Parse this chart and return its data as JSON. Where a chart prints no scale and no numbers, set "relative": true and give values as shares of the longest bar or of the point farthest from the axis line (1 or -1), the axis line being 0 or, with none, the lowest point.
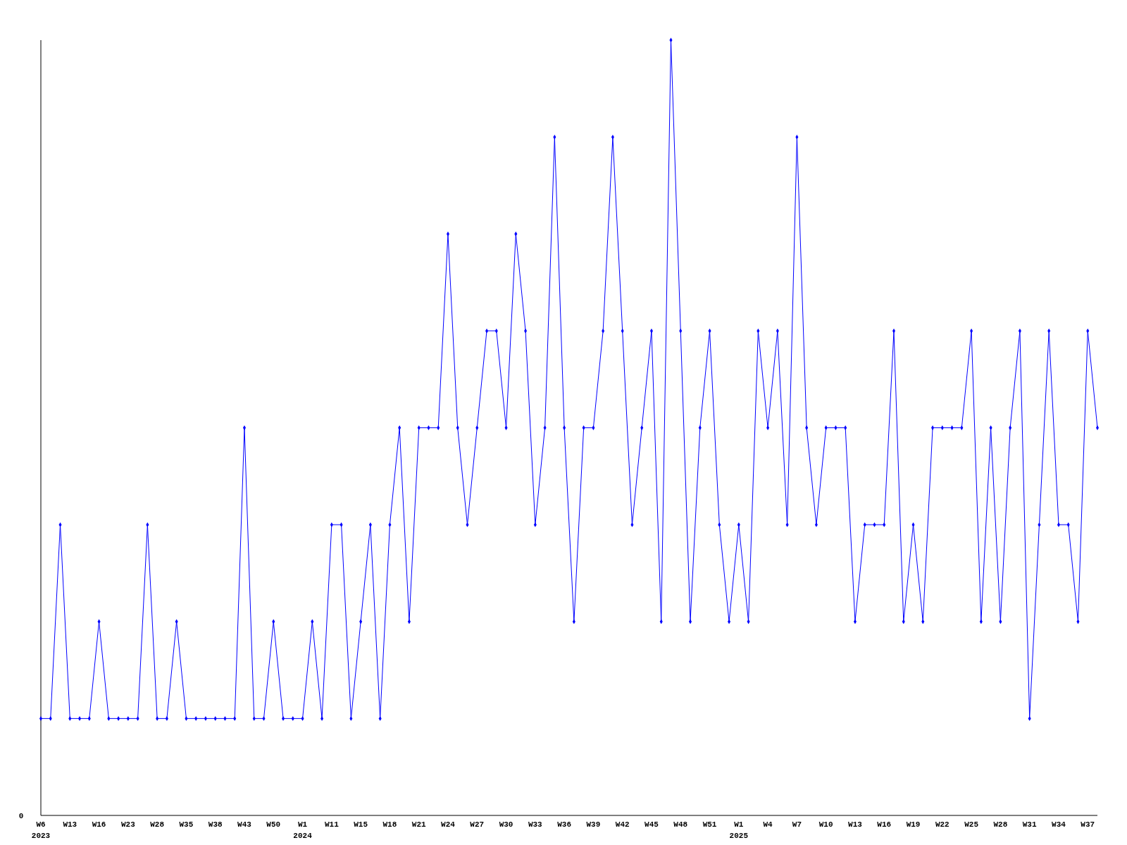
{
  "chart_data": {
    "type": "line",
    "relative": true,
    "marker": "diamond",
    "line_style": "solid",
    "annotations": [
      "0"
    ],
    "categories": [
      "W6\n2023",
      null,
      null,
      "W13",
      null,
      null,
      "W16",
      null,
      null,
      "W23",
      null,
      null,
      "W28",
      null,
      null,
      "W35",
      null,
      null,
      "W38",
      null,
      null,
      "W43",
      null,
      null,
      "W50",
      null,
      null,
      "W1\n2024",
      null,
      null,
      "W11",
      null,
      null,
      "W15",
      null,
      null,
      "W18",
      null,
      null,
      "W21",
      null,
      null,
      "W24",
      null,
      null,
      "W27",
      null,
      null,
      "W30",
      null,
      null,
      "W33",
      null,
      null,
      "W36",
      null,
      null,
      "W39",
      null,
      null,
      "W42",
      null,
      null,
      "W45",
      null,
      null,
      "W48",
      null,
      null,
      "W51",
      null,
      null,
      "W1\n2025",
      null,
      null,
      "W4",
      null,
      null,
      "W7",
      null,
      null,
      "W10",
      null,
      null,
      "W13",
      null,
      null,
      "W16",
      null,
      null,
      "W19",
      null,
      null,
      "W22",
      null,
      null,
      "W25",
      null,
      null,
      "W28",
      null,
      null,
      "W31",
      null,
      null,
      "W34",
      null,
      null,
      "W37",
      null
    ],
    "series": [
      {
        "color": "#0000ff",
        "values": [
          0.125,
          0.125,
          0.375,
          0.125,
          0.125,
          0.125,
          0.25,
          0.125,
          0.125,
          0.125,
          0.125,
          0.375,
          0.125,
          0.125,
          0.25,
          0.125,
          0.125,
          0.125,
          0.125,
          0.125,
          0.125,
          0.5,
          0.125,
          0.125,
          0.25,
          0.125,
          0.125,
          0.125,
          0.25,
          0.125,
          0.375,
          0.375,
          0.125,
          0.25,
          0.375,
          0.125,
          0.375,
          0.5,
          0.25,
          0.5,
          0.5,
          0.5,
          0.75,
          0.5,
          0.375,
          0.5,
          0.625,
          0.625,
          0.5,
          0.75,
          0.625,
          0.375,
          0.5,
          0.875,
          0.5,
          0.25,
          0.5,
          0.5,
          0.625,
          0.875,
          0.625,
          0.375,
          0.5,
          0.625,
          0.25,
          1,
          0.625,
          0.25,
          0.5,
          0.625,
          0.375,
          0.25,
          0.375,
          0.25,
          0.625,
          0.5,
          0.625,
          0.375,
          0.875,
          0.5,
          0.375,
          0.5,
          0.5,
          0.5,
          0.25,
          0.375,
          0.375,
          0.375,
          0.625,
          0.25,
          0.375,
          0.25,
          0.5,
          0.5,
          0.5,
          0.5,
          0.625,
          0.25,
          0.5,
          0.25,
          0.5,
          0.625,
          0.125,
          0.375,
          0.625,
          0.375,
          0.375,
          0.25,
          0.625,
          0.5
        ]
      }
    ]
  }
}
